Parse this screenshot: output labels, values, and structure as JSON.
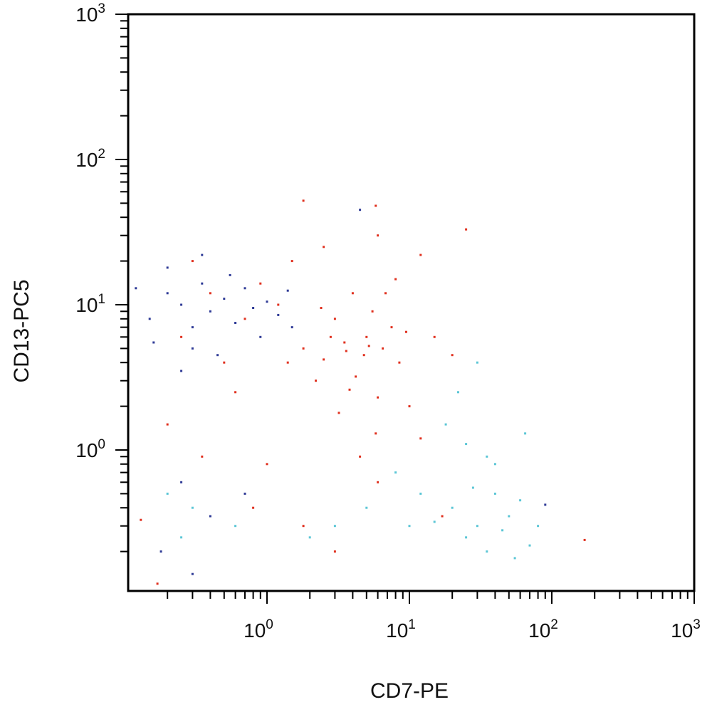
{
  "chart_data": {
    "type": "scatter",
    "title": "",
    "xlabel": "CD7-PE",
    "ylabel": "CD13-PC5",
    "x_scale": "log",
    "y_scale": "log",
    "xlim": [
      0.11,
      1000
    ],
    "ylim": [
      0.11,
      1000
    ],
    "grid": false,
    "legend": "none",
    "ticks": [
      {
        "base": "10",
        "exp": "0",
        "value": 1
      },
      {
        "base": "10",
        "exp": "1",
        "value": 10
      },
      {
        "base": "10",
        "exp": "2",
        "value": 100
      },
      {
        "base": "10",
        "exp": "3",
        "value": 1000
      }
    ],
    "series": [
      {
        "color": "#e0301e",
        "points": [
          [
            2.5,
            4.2
          ],
          [
            3.5,
            5.5
          ],
          [
            5.0,
            6.0
          ],
          [
            4.2,
            3.2
          ],
          [
            6.5,
            5.0
          ],
          [
            3.0,
            8.0
          ],
          [
            2.2,
            3.0
          ],
          [
            7.5,
            7.0
          ],
          [
            4.8,
            4.5
          ],
          [
            3.8,
            2.6
          ],
          [
            5.5,
            9.0
          ],
          [
            8.5,
            4.0
          ],
          [
            2.8,
            6.0
          ],
          [
            6.0,
            2.3
          ],
          [
            4.0,
            12.0
          ],
          [
            9.5,
            6.5
          ],
          [
            1.8,
            5.0
          ],
          [
            3.2,
            1.8
          ],
          [
            5.8,
            1.3
          ],
          [
            4.5,
            0.9
          ],
          [
            6.8,
            12.0
          ],
          [
            3.6,
            4.8
          ],
          [
            5.2,
            5.2
          ],
          [
            2.4,
            9.5
          ],
          [
            1.4,
            4.0
          ],
          [
            1.2,
            10.0
          ],
          [
            0.9,
            14.0
          ],
          [
            0.7,
            8.0
          ],
          [
            1.5,
            20.0
          ],
          [
            2.5,
            25.0
          ],
          [
            6.0,
            30.0
          ],
          [
            12.0,
            22.0
          ],
          [
            15.0,
            6.0
          ],
          [
            20.0,
            4.5
          ],
          [
            0.4,
            12.0
          ],
          [
            0.3,
            20.0
          ],
          [
            0.25,
            6.0
          ],
          [
            0.5,
            4.0
          ],
          [
            0.6,
            2.5
          ],
          [
            0.2,
            1.5
          ],
          [
            0.35,
            0.9
          ],
          [
            1.0,
            0.8
          ],
          [
            0.8,
            0.4
          ],
          [
            1.8,
            0.3
          ],
          [
            3.0,
            0.2
          ],
          [
            6.0,
            0.6
          ],
          [
            12.0,
            1.2
          ],
          [
            17.0,
            0.35
          ],
          [
            25.0,
            33.0
          ],
          [
            8.0,
            15.0
          ],
          [
            10.0,
            2.0
          ],
          [
            1.8,
            52.0
          ],
          [
            5.8,
            48.0
          ],
          [
            0.13,
            0.33
          ],
          [
            0.17,
            0.12
          ],
          [
            170.0,
            0.24
          ]
        ]
      },
      {
        "color": "#2e3a96",
        "points": [
          [
            0.15,
            8.0
          ],
          [
            0.2,
            12.0
          ],
          [
            0.25,
            10.0
          ],
          [
            0.3,
            7.0
          ],
          [
            0.35,
            14.0
          ],
          [
            0.4,
            9.0
          ],
          [
            0.5,
            11.0
          ],
          [
            0.6,
            7.5
          ],
          [
            0.7,
            13.0
          ],
          [
            0.8,
            9.5
          ],
          [
            1.0,
            10.5
          ],
          [
            1.2,
            8.5
          ],
          [
            1.4,
            12.5
          ],
          [
            0.3,
            5.0
          ],
          [
            0.45,
            4.5
          ],
          [
            0.25,
            3.5
          ],
          [
            0.55,
            16.0
          ],
          [
            0.2,
            18.0
          ],
          [
            0.9,
            6.0
          ],
          [
            0.35,
            22.0
          ],
          [
            0.18,
            0.2
          ],
          [
            0.4,
            0.35
          ],
          [
            0.25,
            0.6
          ],
          [
            0.7,
            0.5
          ],
          [
            0.3,
            0.14
          ],
          [
            1.5,
            7.0
          ],
          [
            4.5,
            45.0
          ],
          [
            90.0,
            0.42
          ],
          [
            0.12,
            13.0
          ],
          [
            0.16,
            5.5
          ]
        ]
      },
      {
        "color": "#5bc6d6",
        "points": [
          [
            20.0,
            0.4
          ],
          [
            30.0,
            0.3
          ],
          [
            40.0,
            0.5
          ],
          [
            25.0,
            0.25
          ],
          [
            50.0,
            0.35
          ],
          [
            35.0,
            0.2
          ],
          [
            60.0,
            0.45
          ],
          [
            15.0,
            0.32
          ],
          [
            45.0,
            0.28
          ],
          [
            70.0,
            0.22
          ],
          [
            28.0,
            0.55
          ],
          [
            18.0,
            1.5
          ],
          [
            25.0,
            1.1
          ],
          [
            40.0,
            0.8
          ],
          [
            80.0,
            0.3
          ],
          [
            55.0,
            0.18
          ],
          [
            12.0,
            0.5
          ],
          [
            22.0,
            2.5
          ],
          [
            35.0,
            0.9
          ],
          [
            10.0,
            0.3
          ],
          [
            8.0,
            0.7
          ],
          [
            5.0,
            0.4
          ],
          [
            3.0,
            0.3
          ],
          [
            2.0,
            0.25
          ],
          [
            0.6,
            0.3
          ],
          [
            0.3,
            0.4
          ],
          [
            0.2,
            0.5
          ],
          [
            0.25,
            0.25
          ],
          [
            65.0,
            1.3
          ],
          [
            30.0,
            4.0
          ]
        ]
      }
    ]
  }
}
